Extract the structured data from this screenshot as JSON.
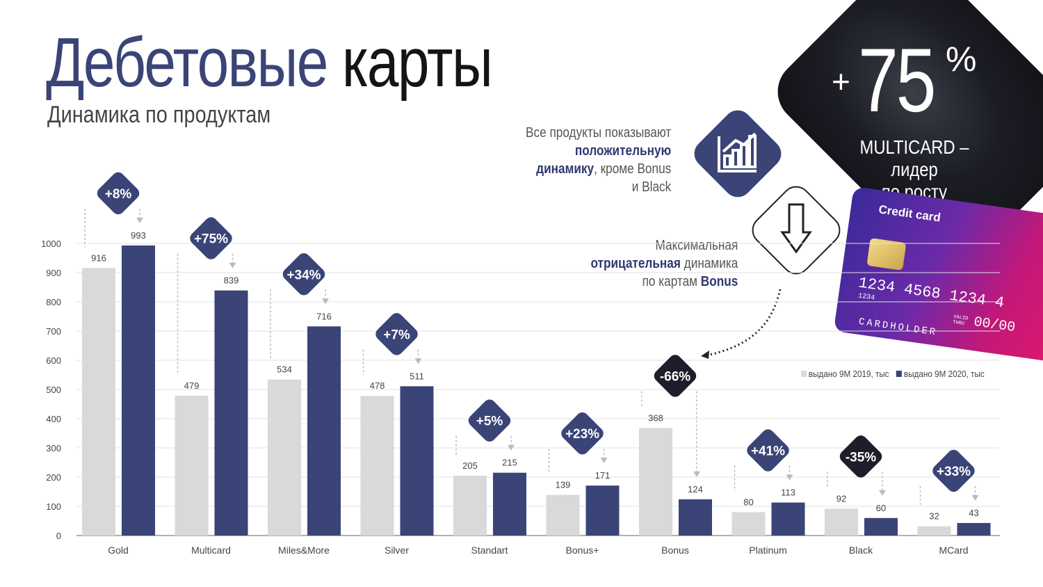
{
  "header": {
    "title_part1": "Дебетовые",
    "title_part2": "карты",
    "subtitle": "Динамика по продуктам"
  },
  "highlight": {
    "plus": "+",
    "value": "75",
    "percent": "%",
    "caption_line1": "MULTICARD – лидер",
    "caption_line2": "по росту"
  },
  "note_positive": {
    "line1": "Все продукты показывают",
    "line2_bold": "положительную",
    "line3_bold": "динамику",
    "line3_rest": ", кроме Bonus",
    "line4": "и Black"
  },
  "note_negative": {
    "line1": "Максимальная",
    "line2_bold": "отрицательная",
    "line2_rest": " динамика",
    "line3_rest": "по картам ",
    "line3_bold": "Bonus"
  },
  "credit_card": {
    "label": "Credit card",
    "number": "1234  4568  1234  4",
    "small_number": "1234",
    "valid_label_1": "VALID",
    "valid_label_2": "THRU",
    "valid_value": "00/00",
    "holder": "CARDHOLDER"
  },
  "icons": {
    "chart_icon": "bar-chart-growth-icon",
    "arrow_icon": "arrow-down-icon"
  },
  "colors": {
    "series_2019": "#d9d9d9",
    "series_2020": "#3b4477",
    "badge": "#3b4477",
    "badge_negative_black": "#1e1e2a"
  },
  "chart_data": {
    "type": "bar",
    "title": "",
    "xlabel": "",
    "ylabel": "",
    "ylim": [
      0,
      1000
    ],
    "yticks": [
      0,
      100,
      200,
      300,
      400,
      500,
      600,
      700,
      800,
      900,
      1000
    ],
    "grid": true,
    "legend_position": "right",
    "categories": [
      "Gold",
      "Multicard",
      "Miles&More",
      "Silver",
      "Standart",
      "Bonus+",
      "Bonus",
      "Platinum",
      "Black",
      "MCard"
    ],
    "series": [
      {
        "name": "выдано  9М 2019, тыс",
        "values": [
          916,
          479,
          534,
          478,
          205,
          139,
          368,
          80,
          92,
          32
        ]
      },
      {
        "name": "выдано 9М 2020, тыс",
        "values": [
          993,
          839,
          716,
          511,
          215,
          171,
          124,
          113,
          60,
          43
        ]
      }
    ],
    "annotations": [
      "+8%",
      "+75%",
      "+34%",
      "+7%",
      "+5%",
      "+23%",
      "-66%",
      "+41%",
      "-35%",
      "+33%"
    ]
  }
}
